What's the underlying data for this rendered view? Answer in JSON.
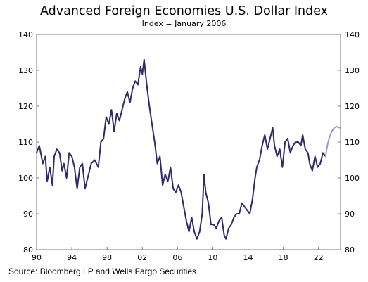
{
  "chart_data": {
    "type": "line",
    "title": "Advanced Foreign Economies U.S. Dollar Index",
    "subtitle": "Index = January 2006",
    "source": "Source: Bloomberg LP and Wells Fargo Securities",
    "x_ticks": [
      "90",
      "94",
      "98",
      "02",
      "06",
      "10",
      "14",
      "18",
      "22"
    ],
    "y_ticks": [
      "140",
      "130",
      "120",
      "110",
      "100",
      "90",
      "80"
    ],
    "xlim": [
      1990,
      2024.5
    ],
    "ylim": [
      80,
      140
    ],
    "grid": false,
    "series": [
      {
        "color": "#2e2a6b",
        "x": [
          1990.0,
          1990.3,
          1990.7,
          1991.0,
          1991.2,
          1991.5,
          1991.8,
          1992.0,
          1992.3,
          1992.6,
          1992.9,
          1993.1,
          1993.4,
          1993.7,
          1994.0,
          1994.3,
          1994.6,
          1994.9,
          1995.2,
          1995.5,
          1995.8,
          1996.2,
          1996.6,
          1997.0,
          1997.3,
          1997.6,
          1997.9,
          1998.2,
          1998.5,
          1998.8,
          1999.1,
          1999.4,
          1999.7,
          2000.0,
          2000.3,
          2000.6,
          2000.9,
          2001.2,
          2001.5,
          2001.8,
          2002.0,
          2002.2,
          2002.5,
          2002.8,
          2003.1,
          2003.4,
          2003.7,
          2004.0,
          2004.3,
          2004.6,
          2004.9,
          2005.2,
          2005.5,
          2005.8,
          2006.1,
          2006.4,
          2006.7,
          2007.0,
          2007.3,
          2007.6,
          2007.9,
          2008.2,
          2008.5,
          2008.8,
          2009.0,
          2009.2,
          2009.5,
          2009.8,
          2010.1,
          2010.4,
          2010.7,
          2011.0,
          2011.3,
          2011.5,
          2011.8,
          2012.1,
          2012.4,
          2012.7,
          2013.0,
          2013.3,
          2013.6,
          2013.9,
          2014.2,
          2014.5,
          2014.8,
          2015.0,
          2015.3,
          2015.6,
          2015.9,
          2016.2,
          2016.5,
          2016.8,
          2017.0,
          2017.3,
          2017.6,
          2017.9,
          2018.2,
          2018.5,
          2018.8,
          2019.1,
          2019.4,
          2019.7,
          2020.0,
          2020.2,
          2020.5,
          2020.8,
          2021.0,
          2021.3,
          2021.6,
          2021.9,
          2022.2,
          2022.5,
          2022.8
        ],
        "y": [
          107,
          109,
          104,
          106,
          99,
          103,
          98,
          106,
          108,
          107,
          102,
          104,
          100,
          107,
          106,
          103,
          97,
          103,
          104,
          97,
          100,
          104,
          105,
          103,
          110,
          111,
          117,
          115,
          119,
          113,
          118,
          116,
          119,
          122,
          124,
          121,
          125,
          127,
          126,
          131,
          129,
          133,
          126,
          120,
          115,
          110,
          104,
          106,
          98,
          101,
          99,
          103,
          97,
          96,
          98,
          96,
          92,
          88,
          85,
          89,
          85,
          83,
          85,
          90,
          101,
          96,
          93,
          87,
          87,
          86,
          88,
          89,
          84,
          83,
          86,
          87,
          89,
          90,
          90,
          93,
          92,
          91,
          90,
          94,
          100,
          103,
          105,
          109,
          112,
          108,
          111,
          114,
          109,
          106,
          108,
          103,
          110,
          111,
          107,
          109,
          110,
          110,
          109,
          112,
          108,
          107,
          104,
          102,
          106,
          103,
          104,
          107,
          106
        ]
      },
      {
        "color": "#9b93dc",
        "x": [
          2022.8,
          2023.0,
          2023.2,
          2023.5,
          2023.8,
          2024.1,
          2024.4
        ],
        "y": [
          106,
          109,
          111,
          113,
          114,
          114.3,
          114
        ]
      }
    ]
  }
}
